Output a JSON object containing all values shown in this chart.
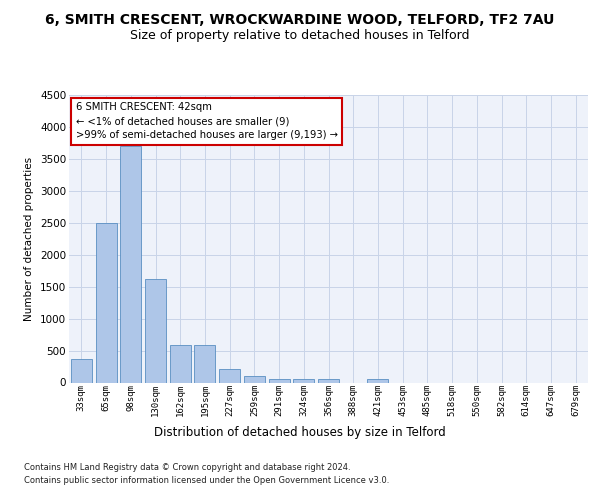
{
  "title": "6, SMITH CRESCENT, WROCKWARDINE WOOD, TELFORD, TF2 7AU",
  "subtitle": "Size of property relative to detached houses in Telford",
  "xlabel": "Distribution of detached houses by size in Telford",
  "ylabel": "Number of detached properties",
  "footnote1": "Contains HM Land Registry data © Crown copyright and database right 2024.",
  "footnote2": "Contains public sector information licensed under the Open Government Licence v3.0.",
  "annotation_title": "6 SMITH CRESCENT: 42sqm",
  "annotation_line2": "← <1% of detached houses are smaller (9)",
  "annotation_line3": ">99% of semi-detached houses are larger (9,193) →",
  "categories": [
    "33sqm",
    "65sqm",
    "98sqm",
    "130sqm",
    "162sqm",
    "195sqm",
    "227sqm",
    "259sqm",
    "291sqm",
    "324sqm",
    "356sqm",
    "388sqm",
    "421sqm",
    "453sqm",
    "485sqm",
    "518sqm",
    "550sqm",
    "582sqm",
    "614sqm",
    "647sqm",
    "679sqm"
  ],
  "values": [
    370,
    2500,
    3700,
    1620,
    590,
    590,
    215,
    105,
    60,
    55,
    50,
    0,
    55,
    0,
    0,
    0,
    0,
    0,
    0,
    0,
    0
  ],
  "bar_color": "#aec6e8",
  "bar_edge_color": "#5a8fc2",
  "annotation_box_edge": "#cc0000",
  "ylim": [
    0,
    4500
  ],
  "yticks": [
    0,
    500,
    1000,
    1500,
    2000,
    2500,
    3000,
    3500,
    4000,
    4500
  ],
  "grid_color": "#c8d4e8",
  "bg_color": "#eef2fa",
  "title_fontsize": 10,
  "subtitle_fontsize": 9
}
